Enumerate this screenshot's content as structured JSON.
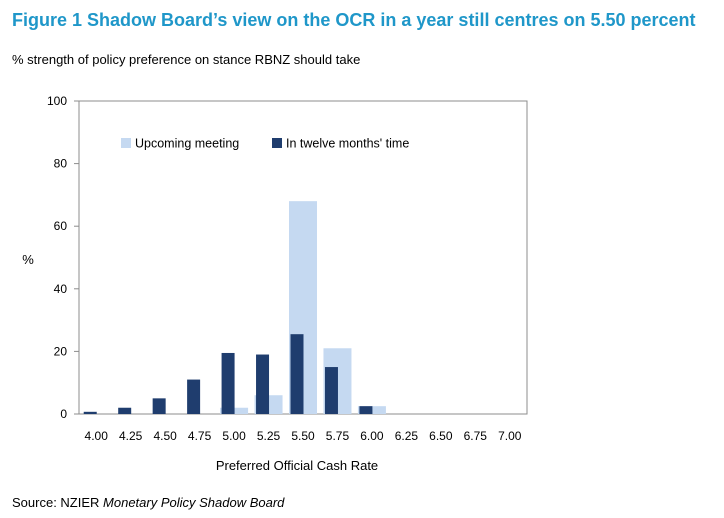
{
  "figure": {
    "title": "Figure 1 Shadow Board’s view on the OCR in a year still centres on 5.50 percent",
    "subtitle": "% strength of policy preference on stance RBNZ should take",
    "source_prefix": "Source: NZIER ",
    "source_italic": "Monetary Policy Shadow Board"
  },
  "chart_data": {
    "type": "bar",
    "xlabel": "Preferred  Official Cash Rate",
    "ylabel": "%",
    "ylim": [
      0,
      100
    ],
    "yticks": [
      0,
      20,
      40,
      60,
      80,
      100
    ],
    "categories": [
      "4.00",
      "4.25",
      "4.50",
      "4.75",
      "5.00",
      "5.25",
      "5.50",
      "5.75",
      "6.00",
      "6.25",
      "6.50",
      "6.75",
      "7.00"
    ],
    "series": [
      {
        "name": "Upcoming meeting",
        "color": "#c5d9f1",
        "values": [
          0,
          0,
          0,
          0,
          2,
          6,
          68,
          21,
          2.5,
          0,
          0,
          0,
          0
        ]
      },
      {
        "name": "In twelve months' time",
        "color": "#1f3d6e",
        "values": [
          0.7,
          2,
          5,
          11,
          19.5,
          19,
          25.5,
          15,
          2.5,
          0,
          0,
          0,
          0
        ]
      }
    ],
    "legend": "top-center",
    "grid": false
  }
}
